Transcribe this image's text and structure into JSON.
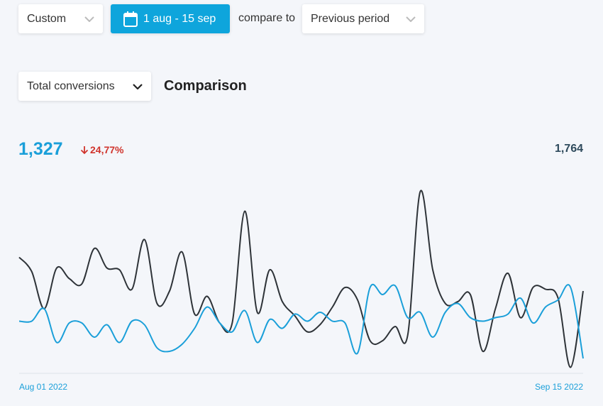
{
  "controls": {
    "period_select": "Custom",
    "date_range": "1 aug - 15 sep",
    "compare_label": "compare to",
    "compare_select": "Previous period",
    "metric_select": "Total conversions",
    "heading": "Comparison"
  },
  "summary": {
    "current": "1,327",
    "change": "24,77%",
    "previous": "1,764"
  },
  "chart_data": {
    "type": "line",
    "categories": [
      "Aug 01 2022",
      null,
      null,
      null,
      null,
      null,
      null,
      null,
      null,
      null,
      null,
      null,
      null,
      null,
      null,
      null,
      null,
      null,
      null,
      null,
      null,
      null,
      null,
      null,
      null,
      null,
      null,
      null,
      null,
      null,
      null,
      null,
      null,
      null,
      null,
      null,
      null,
      null,
      null,
      null,
      null,
      null,
      null,
      null,
      null,
      "Sep 15 2022"
    ],
    "series": [
      {
        "color": "#2e3338",
        "values": [
          65,
          57,
          36,
          59,
          53,
          50,
          70,
          59,
          58,
          47,
          75,
          39,
          46,
          68,
          33,
          43,
          28,
          28,
          91,
          34,
          58,
          40,
          32,
          23,
          27,
          37,
          48,
          41,
          18,
          18,
          26,
          21,
          102,
          58,
          39,
          40,
          44,
          12,
          36,
          56,
          31,
          48,
          47,
          42,
          3,
          46
        ]
      },
      {
        "color": "#1a9fd9",
        "values": [
          29,
          29,
          36,
          17,
          28,
          28,
          20,
          27,
          17,
          29,
          27,
          14,
          12,
          16,
          25,
          37,
          28,
          23,
          35,
          17,
          30,
          25,
          33,
          29,
          34,
          29,
          28,
          11,
          48,
          44,
          49,
          31,
          34,
          20,
          34,
          39,
          31,
          29,
          31,
          33,
          42,
          28,
          37,
          41,
          48,
          8
        ]
      }
    ],
    "ylim": [
      0,
      110
    ]
  }
}
